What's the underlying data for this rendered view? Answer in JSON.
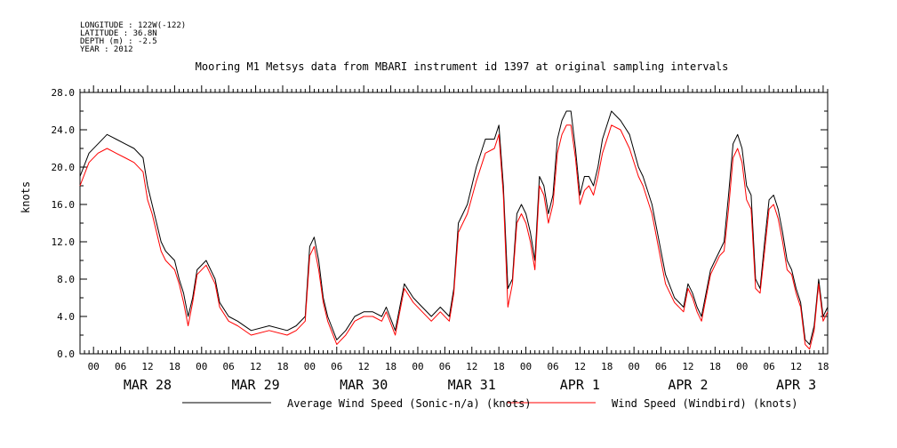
{
  "meta": {
    "longitude": "LONGITUDE : 122W(-122)",
    "latitude": "LATITUDE : 36.8N",
    "depth": "DEPTH (m) : -2.5",
    "year": "YEAR : 2012"
  },
  "chart_data": {
    "type": "line",
    "title": "Mooring M1 Metsys data from MBARI instrument id 1397 at original sampling intervals",
    "ylabel": "knots",
    "xlabel": "",
    "ylim": [
      0,
      28
    ],
    "y_ticks": [
      "0.0",
      "4.0",
      "8.0",
      "12.0",
      "16.0",
      "20.0",
      "24.0",
      "28.0"
    ],
    "x_unit": "hours since MAR 27 2012 21:00",
    "xlim": [
      0,
      166
    ],
    "hour_ticks": [
      "00",
      "06",
      "12",
      "18",
      "00",
      "06",
      "12",
      "18",
      "00",
      "06",
      "12",
      "18",
      "00",
      "06",
      "12",
      "18",
      "00",
      "06",
      "12",
      "18",
      "00",
      "06",
      "12",
      "18",
      "00",
      "06",
      "12",
      "18"
    ],
    "day_labels": [
      "MAR 28",
      "MAR 29",
      "MAR 30",
      "MAR 31",
      "APR  1",
      "APR  2",
      "APR  3"
    ],
    "grid": false,
    "legend_position": "bottom",
    "series": [
      {
        "name": "Average Wind Speed (Sonic-n/a) (knots)",
        "color": "#000000",
        "points": [
          [
            0,
            19
          ],
          [
            2,
            21.5
          ],
          [
            4,
            22.5
          ],
          [
            6,
            23.5
          ],
          [
            8,
            23
          ],
          [
            10,
            22.5
          ],
          [
            12,
            22
          ],
          [
            14,
            21
          ],
          [
            15,
            18
          ],
          [
            16,
            16
          ],
          [
            18,
            12
          ],
          [
            19,
            11
          ],
          [
            21,
            10
          ],
          [
            22,
            8
          ],
          [
            23,
            6.5
          ],
          [
            24,
            4
          ],
          [
            25,
            6
          ],
          [
            26,
            9
          ],
          [
            28,
            10
          ],
          [
            30,
            8
          ],
          [
            31,
            5.5
          ],
          [
            33,
            4
          ],
          [
            35,
            3.5
          ],
          [
            38,
            2.5
          ],
          [
            42,
            3
          ],
          [
            46,
            2.5
          ],
          [
            48,
            3
          ],
          [
            50,
            4
          ],
          [
            51,
            11.5
          ],
          [
            52,
            12.5
          ],
          [
            53,
            10
          ],
          [
            54,
            6
          ],
          [
            55,
            4
          ],
          [
            57,
            1.5
          ],
          [
            59,
            2.5
          ],
          [
            61,
            4
          ],
          [
            63,
            4.5
          ],
          [
            65,
            4.5
          ],
          [
            67,
            4
          ],
          [
            68,
            5
          ],
          [
            70,
            2.5
          ],
          [
            71,
            5
          ],
          [
            72,
            7.5
          ],
          [
            74,
            6
          ],
          [
            76,
            5
          ],
          [
            78,
            4
          ],
          [
            80,
            5
          ],
          [
            82,
            4
          ],
          [
            83,
            7
          ],
          [
            84,
            14
          ],
          [
            86,
            16
          ],
          [
            88,
            20
          ],
          [
            90,
            23
          ],
          [
            92,
            23
          ],
          [
            93,
            24.5
          ],
          [
            94,
            18
          ],
          [
            95,
            7
          ],
          [
            96,
            8
          ],
          [
            97,
            15
          ],
          [
            98,
            16
          ],
          [
            99,
            15
          ],
          [
            100,
            13
          ],
          [
            101,
            10
          ],
          [
            102,
            19
          ],
          [
            103,
            18
          ],
          [
            104,
            15
          ],
          [
            105,
            17
          ],
          [
            106,
            23
          ],
          [
            107,
            25
          ],
          [
            108,
            26
          ],
          [
            109,
            26
          ],
          [
            110,
            22
          ],
          [
            111,
            17
          ],
          [
            112,
            19
          ],
          [
            113,
            19
          ],
          [
            114,
            18
          ],
          [
            115,
            20
          ],
          [
            116,
            23
          ],
          [
            118,
            26
          ],
          [
            120,
            25
          ],
          [
            122,
            23.5
          ],
          [
            124,
            20
          ],
          [
            125,
            19
          ],
          [
            127,
            16
          ],
          [
            129,
            11
          ],
          [
            130,
            8.5
          ],
          [
            132,
            6
          ],
          [
            134,
            5
          ],
          [
            135,
            7.5
          ],
          [
            136,
            6.5
          ],
          [
            137,
            5
          ],
          [
            138,
            4
          ],
          [
            140,
            9
          ],
          [
            141,
            10
          ],
          [
            142,
            11
          ],
          [
            143,
            12
          ],
          [
            144,
            17
          ],
          [
            145,
            22.5
          ],
          [
            146,
            23.5
          ],
          [
            147,
            22
          ],
          [
            148,
            18
          ],
          [
            149,
            17
          ],
          [
            150,
            8
          ],
          [
            151,
            7
          ],
          [
            152,
            12
          ],
          [
            153,
            16.5
          ],
          [
            154,
            17
          ],
          [
            155,
            15.5
          ],
          [
            156,
            13
          ],
          [
            157,
            10
          ],
          [
            158,
            9
          ],
          [
            159,
            7
          ],
          [
            160,
            5.5
          ],
          [
            161,
            1.5
          ],
          [
            162,
            1
          ],
          [
            163,
            3
          ],
          [
            164,
            8
          ],
          [
            165,
            4
          ],
          [
            166,
            5
          ]
        ]
      },
      {
        "name": "Wind Speed (Windbird) (knots)",
        "color": "#ff0000",
        "points": [
          [
            0,
            18
          ],
          [
            2,
            20.5
          ],
          [
            4,
            21.5
          ],
          [
            6,
            22
          ],
          [
            8,
            21.5
          ],
          [
            10,
            21
          ],
          [
            12,
            20.5
          ],
          [
            14,
            19.5
          ],
          [
            15,
            16.5
          ],
          [
            16,
            15
          ],
          [
            18,
            11
          ],
          [
            19,
            10
          ],
          [
            21,
            9
          ],
          [
            22,
            7.5
          ],
          [
            23,
            5.5
          ],
          [
            24,
            3
          ],
          [
            25,
            5.5
          ],
          [
            26,
            8.5
          ],
          [
            28,
            9.5
          ],
          [
            30,
            7.5
          ],
          [
            31,
            5
          ],
          [
            33,
            3.5
          ],
          [
            35,
            3
          ],
          [
            38,
            2
          ],
          [
            42,
            2.5
          ],
          [
            46,
            2
          ],
          [
            48,
            2.5
          ],
          [
            50,
            3.5
          ],
          [
            51,
            10.5
          ],
          [
            52,
            11.5
          ],
          [
            53,
            9
          ],
          [
            54,
            5.5
          ],
          [
            55,
            3.5
          ],
          [
            57,
            1
          ],
          [
            59,
            2
          ],
          [
            61,
            3.5
          ],
          [
            63,
            4
          ],
          [
            65,
            4
          ],
          [
            67,
            3.5
          ],
          [
            68,
            4.5
          ],
          [
            70,
            2
          ],
          [
            71,
            4.5
          ],
          [
            72,
            7
          ],
          [
            74,
            5.5
          ],
          [
            76,
            4.5
          ],
          [
            78,
            3.5
          ],
          [
            80,
            4.5
          ],
          [
            82,
            3.5
          ],
          [
            83,
            6.5
          ],
          [
            84,
            13
          ],
          [
            86,
            15
          ],
          [
            88,
            18.5
          ],
          [
            90,
            21.5
          ],
          [
            92,
            22
          ],
          [
            93,
            23.5
          ],
          [
            94,
            17
          ],
          [
            95,
            5
          ],
          [
            96,
            7.5
          ],
          [
            97,
            14
          ],
          [
            98,
            15
          ],
          [
            99,
            14
          ],
          [
            100,
            12
          ],
          [
            101,
            9
          ],
          [
            102,
            18
          ],
          [
            103,
            17
          ],
          [
            104,
            14
          ],
          [
            105,
            16
          ],
          [
            106,
            21.5
          ],
          [
            107,
            23.5
          ],
          [
            108,
            24.5
          ],
          [
            109,
            24.5
          ],
          [
            110,
            21
          ],
          [
            111,
            16
          ],
          [
            112,
            17.5
          ],
          [
            113,
            18
          ],
          [
            114,
            17
          ],
          [
            115,
            19
          ],
          [
            116,
            21.5
          ],
          [
            118,
            24.5
          ],
          [
            120,
            24
          ],
          [
            122,
            22
          ],
          [
            124,
            19
          ],
          [
            125,
            18
          ],
          [
            127,
            15
          ],
          [
            129,
            10
          ],
          [
            130,
            7.5
          ],
          [
            132,
            5.5
          ],
          [
            134,
            4.5
          ],
          [
            135,
            7
          ],
          [
            136,
            6
          ],
          [
            137,
            4.5
          ],
          [
            138,
            3.5
          ],
          [
            140,
            8.5
          ],
          [
            141,
            9.5
          ],
          [
            142,
            10.5
          ],
          [
            143,
            11
          ],
          [
            144,
            15.5
          ],
          [
            145,
            21
          ],
          [
            146,
            22
          ],
          [
            147,
            20.5
          ],
          [
            148,
            16.5
          ],
          [
            149,
            15.5
          ],
          [
            150,
            7
          ],
          [
            151,
            6.5
          ],
          [
            152,
            11
          ],
          [
            153,
            15.5
          ],
          [
            154,
            16
          ],
          [
            155,
            14.5
          ],
          [
            156,
            12
          ],
          [
            157,
            9
          ],
          [
            158,
            8.5
          ],
          [
            159,
            6.5
          ],
          [
            160,
            5
          ],
          [
            161,
            1
          ],
          [
            162,
            0.5
          ],
          [
            163,
            2.5
          ],
          [
            164,
            7.5
          ],
          [
            165,
            3.5
          ],
          [
            166,
            4.5
          ]
        ]
      }
    ]
  }
}
